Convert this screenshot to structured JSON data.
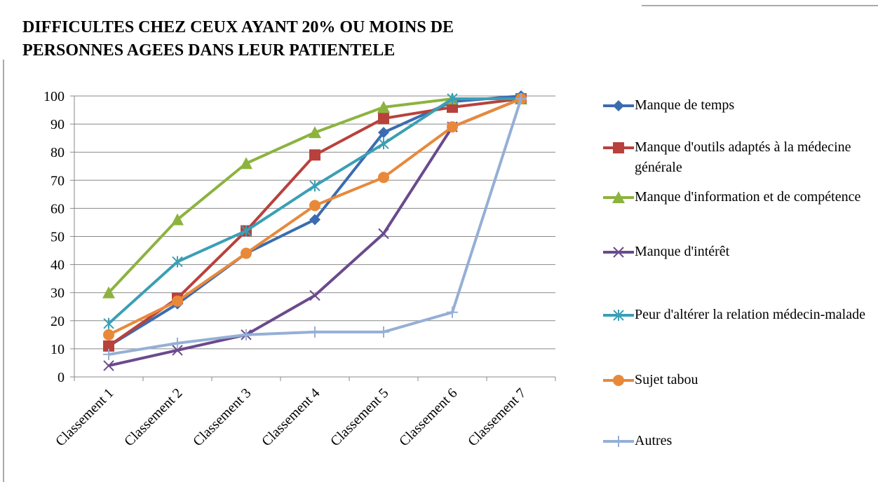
{
  "chart_data": {
    "type": "line",
    "title": [
      "DIFFICULTES CHEZ CEUX AYANT 20% OU MOINS DE",
      "PERSONNES AGEES DANS LEUR PATIENTELE"
    ],
    "categories": [
      "Classement 1",
      "Classement 2",
      "Classement 3",
      "Classement 4",
      "Classement 5",
      "Classement 6",
      "Classement 7"
    ],
    "series": [
      {
        "name": "Manque de temps",
        "color": "#3b6cb0",
        "marker": "diamond",
        "values": [
          11,
          26,
          44,
          56,
          87,
          98,
          100
        ]
      },
      {
        "name": "Manque d'outils adaptés à la médecine générale",
        "color": "#b8413c",
        "marker": "square",
        "values": [
          11,
          28,
          52,
          79,
          92,
          96,
          99
        ]
      },
      {
        "name": "Manque d'information et de compétence",
        "color": "#8cb33f",
        "marker": "triangle",
        "values": [
          30,
          56,
          76,
          87,
          96,
          99,
          99
        ]
      },
      {
        "name": "Manque d'intérêt",
        "color": "#6a4a8c",
        "marker": "x",
        "values": [
          4,
          9.5,
          15,
          29,
          51,
          89,
          99
        ]
      },
      {
        "name": "Peur d'altérer la relation médecin-malade",
        "color": "#3a9fb5",
        "marker": "star",
        "values": [
          19,
          41,
          52,
          68,
          83,
          99,
          99
        ]
      },
      {
        "name": "Sujet tabou",
        "color": "#e8893a",
        "marker": "circle",
        "values": [
          15,
          27,
          44,
          61,
          71,
          89,
          99
        ]
      },
      {
        "name": "Autres",
        "color": "#95afd6",
        "marker": "plus",
        "values": [
          8,
          12,
          15,
          16,
          16,
          23,
          99
        ]
      }
    ],
    "ylim": [
      0,
      100
    ],
    "yticks": [
      0,
      10,
      20,
      30,
      40,
      50,
      60,
      70,
      80,
      90,
      100
    ],
    "grid": true,
    "legend": "right"
  }
}
